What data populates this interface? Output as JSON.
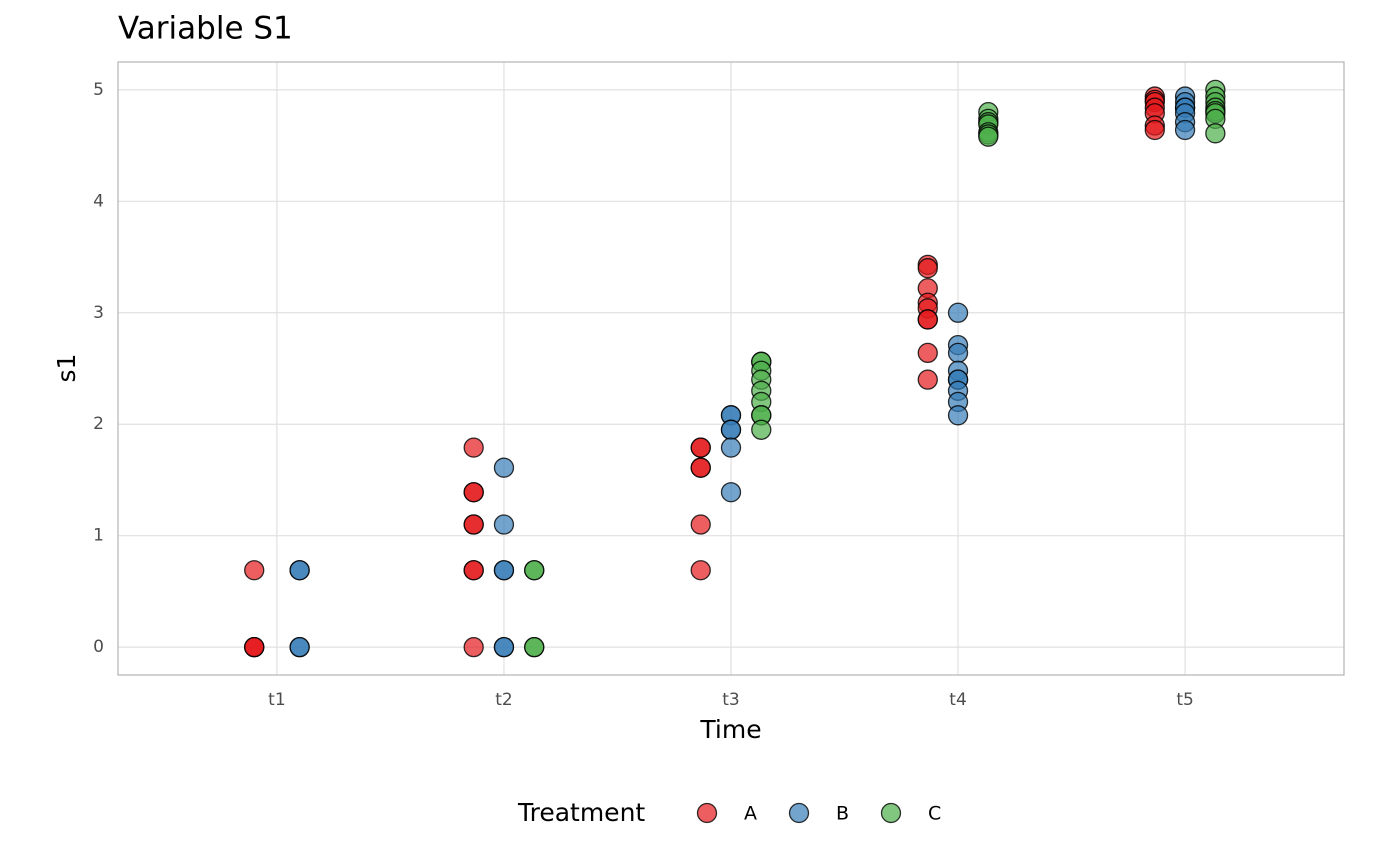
{
  "chart_data": {
    "type": "scatter",
    "title": "Variable S1",
    "x_label": "Time",
    "y_label": "s1",
    "categories": [
      "t1",
      "t2",
      "t3",
      "t4",
      "t5"
    ],
    "ylim": [
      -0.25,
      5.25
    ],
    "yticks": [
      0,
      1,
      2,
      3,
      4,
      5
    ],
    "grid": true,
    "dodge_width": 0.4,
    "legend_title": "Treatment",
    "legend_position": "bottom",
    "series": [
      {
        "name": "A",
        "color": "#E41A1C",
        "x": [
          "t1",
          "t1",
          "t1",
          "t1",
          "t2",
          "t2",
          "t2",
          "t2",
          "t2",
          "t2",
          "t2",
          "t2",
          "t3",
          "t3",
          "t3",
          "t3",
          "t3",
          "t3",
          "t4",
          "t4",
          "t4",
          "t4",
          "t4",
          "t4",
          "t4",
          "t4",
          "t4",
          "t5",
          "t5",
          "t5",
          "t5",
          "t5",
          "t5",
          "t5"
        ],
        "values": [
          0,
          0,
          0,
          0.69,
          1.79,
          1.39,
          1.39,
          1.1,
          1.1,
          0.69,
          0.69,
          0,
          1.79,
          1.79,
          1.61,
          1.61,
          1.1,
          0.69,
          3.43,
          3.4,
          3.22,
          3.09,
          3.04,
          2.94,
          2.94,
          2.64,
          2.4,
          4.94,
          4.91,
          4.89,
          4.84,
          4.79,
          4.68,
          4.64
        ]
      },
      {
        "name": "B",
        "color": "#377EB8",
        "x": [
          "t1",
          "t1",
          "t1",
          "t1",
          "t2",
          "t2",
          "t2",
          "t2",
          "t2",
          "t2",
          "t3",
          "t3",
          "t3",
          "t3",
          "t3",
          "t3",
          "t4",
          "t4",
          "t4",
          "t4",
          "t4",
          "t4",
          "t4",
          "t4",
          "t4",
          "t5",
          "t5",
          "t5",
          "t5",
          "t5",
          "t5",
          "t5"
        ],
        "values": [
          0,
          0,
          0.69,
          0.69,
          1.61,
          1.1,
          0.69,
          0.69,
          0,
          0,
          2.08,
          2.08,
          1.95,
          1.95,
          1.79,
          1.39,
          3,
          2.71,
          2.64,
          2.48,
          2.4,
          2.4,
          2.3,
          2.2,
          2.08,
          4.94,
          4.89,
          4.84,
          4.84,
          4.79,
          4.71,
          4.64
        ]
      },
      {
        "name": "C",
        "color": "#4DAF4A",
        "x": [
          "t2",
          "t2",
          "t2",
          "t2",
          "t3",
          "t3",
          "t3",
          "t3",
          "t3",
          "t3",
          "t3",
          "t3",
          "t3",
          "t4",
          "t4",
          "t4",
          "t4",
          "t4",
          "t4",
          "t4",
          "t5",
          "t5",
          "t5",
          "t5",
          "t5",
          "t5",
          "t5",
          "t5"
        ],
        "values": [
          0.69,
          0.69,
          0,
          0,
          2.56,
          2.56,
          2.48,
          2.4,
          2.3,
          2.2,
          2.08,
          2.08,
          1.95,
          4.8,
          4.74,
          4.71,
          4.69,
          4.62,
          4.6,
          4.58,
          5,
          4.94,
          4.89,
          4.84,
          4.81,
          4.79,
          4.74,
          4.61
        ]
      }
    ]
  }
}
